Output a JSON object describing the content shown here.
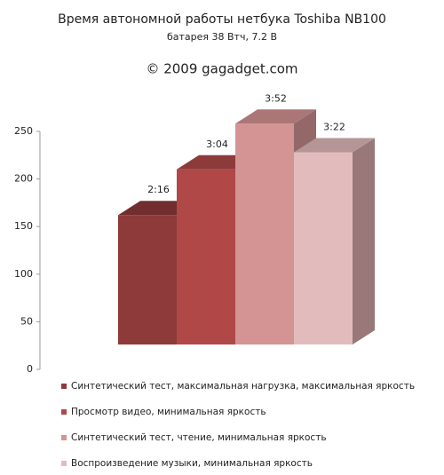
{
  "chart_data": {
    "type": "bar3d",
    "title": "Время автономной работы нетбука Toshiba NB100",
    "subtitle": "батарея 38 Втч, 7.2 В",
    "credit": "© 2009 gagadget.com",
    "ylim": [
      0,
      250
    ],
    "yticks": [
      0,
      50,
      100,
      150,
      200,
      250
    ],
    "series": [
      {
        "name": "Синтетический тест, максимальная нагрузка, максимальная яркость",
        "color": "#8e3a3a",
        "values": [
          136
        ],
        "value_labels": [
          "2:16"
        ]
      },
      {
        "name": "Просмотр видео,  минимальная яркость",
        "color": "#b04848",
        "values": [
          184
        ],
        "value_labels": [
          "3:04"
        ]
      },
      {
        "name": "Синтетический тест, чтение, минимальная яркость",
        "color": "#d49494",
        "values": [
          232
        ],
        "value_labels": [
          "3:52"
        ]
      },
      {
        "name": "Воспроизведение музыки, минимальная яркость",
        "color": "#e2bcbc",
        "values": [
          202
        ],
        "value_labels": [
          "3:22"
        ]
      }
    ]
  }
}
